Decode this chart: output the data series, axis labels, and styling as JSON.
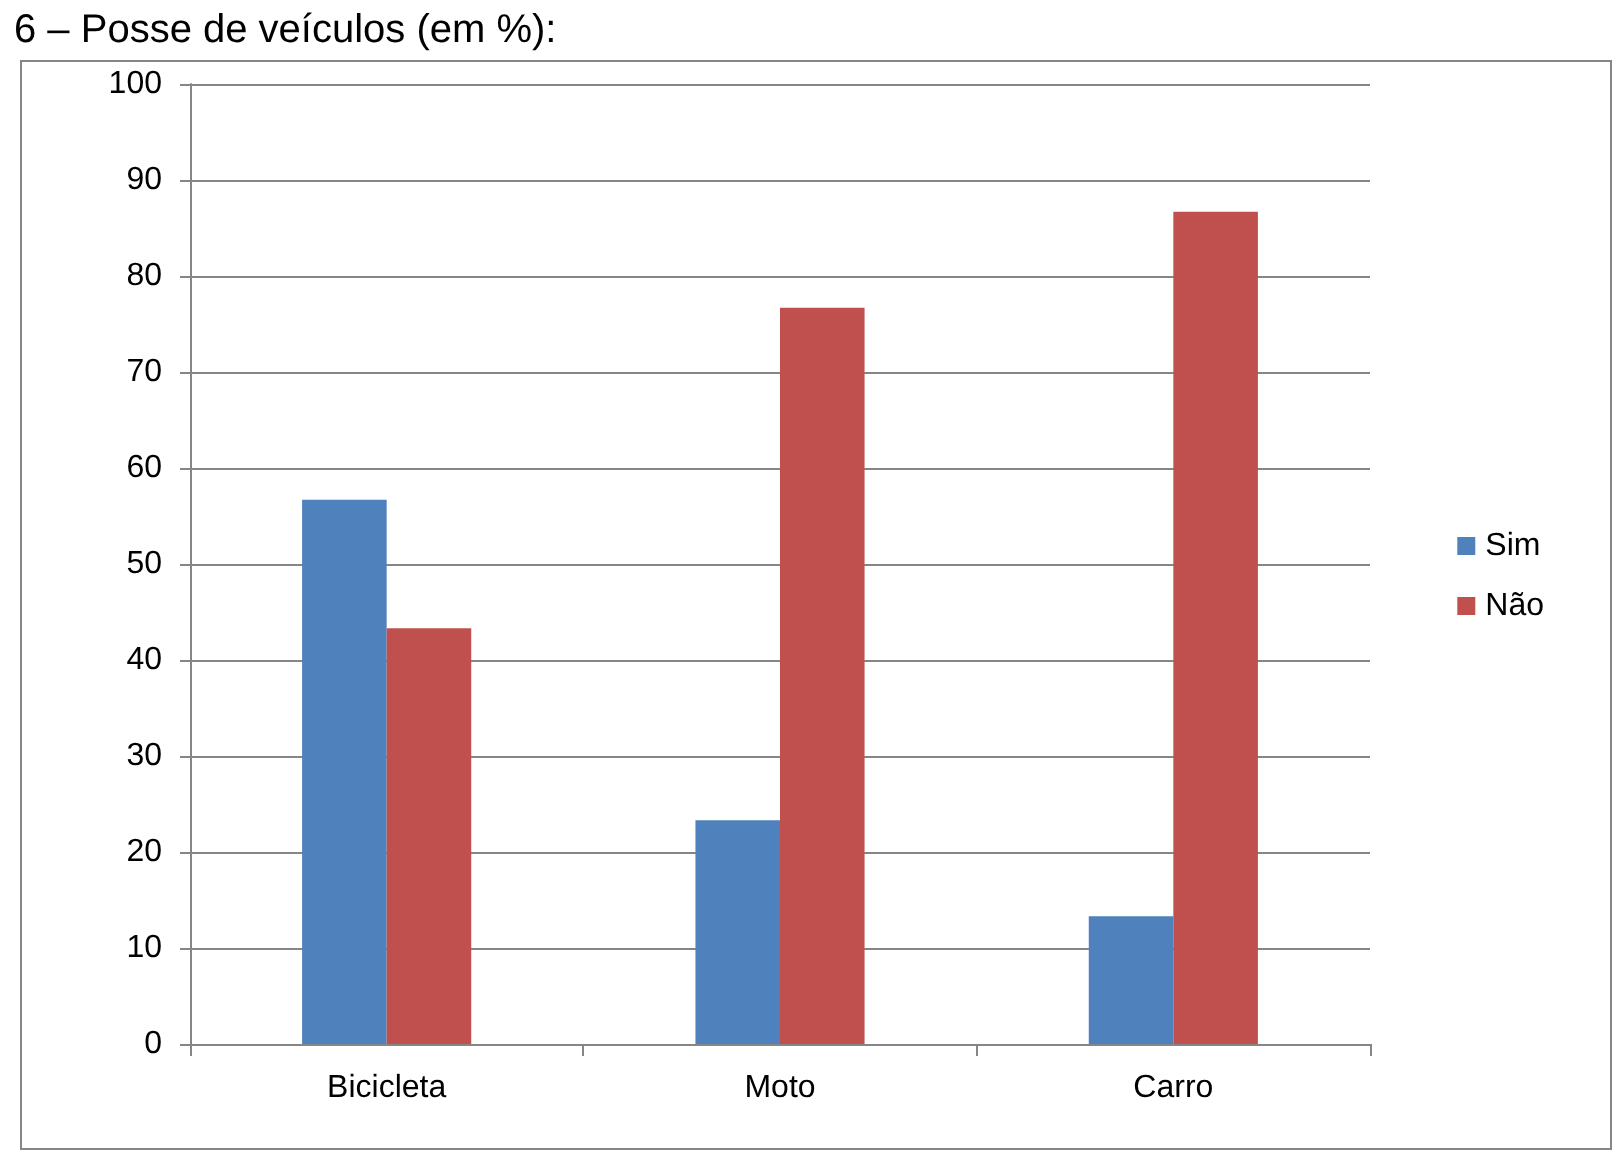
{
  "chart_data": {
    "type": "bar",
    "title": "6 – Posse de veículos (em %):",
    "categories": [
      "Bicicleta",
      "Moto",
      "Carro"
    ],
    "series": [
      {
        "name": "Sim",
        "color": "#4f81bd",
        "values": [
          56.7,
          23.3,
          13.3
        ]
      },
      {
        "name": "Não",
        "color": "#c0504d",
        "values": [
          43.3,
          76.7,
          86.7
        ]
      }
    ],
    "ylim": [
      0,
      100
    ],
    "yticks": [
      0,
      10,
      20,
      30,
      40,
      50,
      60,
      70,
      80,
      90,
      100
    ],
    "grid": "y",
    "legend": "right"
  }
}
